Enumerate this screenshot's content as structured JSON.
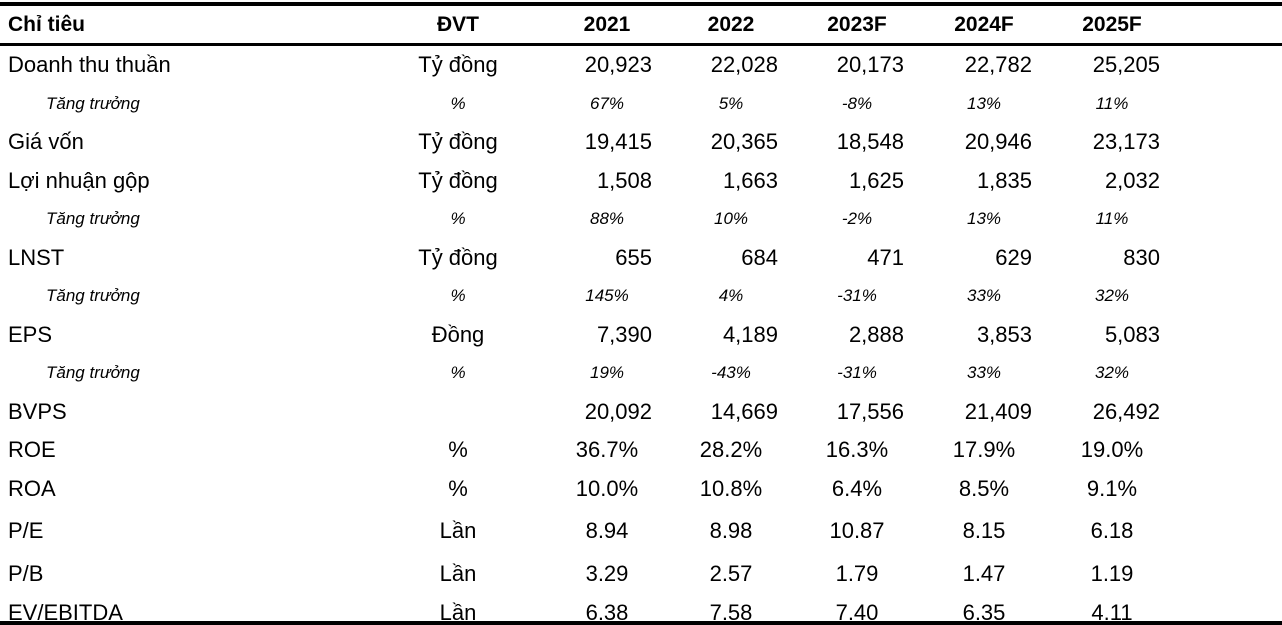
{
  "colors": {
    "background": "#ffffff",
    "text": "#000000",
    "rule": "#000000"
  },
  "table": {
    "columns": [
      {
        "label": "Chỉ tiêu"
      },
      {
        "label": "ĐVT"
      },
      {
        "label": "2021"
      },
      {
        "label": "2022"
      },
      {
        "label": "2023F"
      },
      {
        "label": "2024F"
      },
      {
        "label": "2025F"
      }
    ],
    "rows": [
      {
        "label": "Doanh thu thuần",
        "unit": "Tỷ đồng",
        "style": "num",
        "values": [
          "20,923",
          "22,028",
          "20,173",
          "22,782",
          "25,205"
        ]
      },
      {
        "label": "Tăng trưởng",
        "unit": "%",
        "style": "growth",
        "values": [
          "67%",
          "5%",
          "-8%",
          "13%",
          "11%"
        ]
      },
      {
        "label": "Giá vốn",
        "unit": "Tỷ đồng",
        "style": "num",
        "values": [
          "19,415",
          "20,365",
          "18,548",
          "20,946",
          "23,173"
        ]
      },
      {
        "label": "Lợi nhuận gộp",
        "unit": "Tỷ đồng",
        "style": "num",
        "values": [
          "1,508",
          "1,663",
          "1,625",
          "1,835",
          "2,032"
        ]
      },
      {
        "label": "Tăng trưởng",
        "unit": "%",
        "style": "growth",
        "values": [
          "88%",
          "10%",
          "-2%",
          "13%",
          "11%"
        ]
      },
      {
        "label": "LNST",
        "unit": "Tỷ đồng",
        "style": "num",
        "values": [
          "655",
          "684",
          "471",
          "629",
          "830"
        ]
      },
      {
        "label": "Tăng trưởng",
        "unit": "%",
        "style": "growth",
        "values": [
          "145%",
          "4%",
          "-31%",
          "33%",
          "32%"
        ]
      },
      {
        "label": "EPS",
        "unit": "Đồng",
        "style": "num",
        "values": [
          "7,390",
          "4,189",
          "2,888",
          "3,853",
          "5,083"
        ]
      },
      {
        "label": "Tăng trưởng",
        "unit": "%",
        "style": "growth",
        "values": [
          "19%",
          "-43%",
          "-31%",
          "33%",
          "32%"
        ]
      },
      {
        "label": "BVPS",
        "unit": "",
        "style": "num",
        "values": [
          "20,092",
          "14,669",
          "17,556",
          "21,409",
          "26,492"
        ]
      },
      {
        "label": "ROE",
        "unit": "%",
        "style": "ratio",
        "values": [
          "36.7%",
          "28.2%",
          "16.3%",
          "17.9%",
          "19.0%"
        ]
      },
      {
        "label": "ROA",
        "unit": "%",
        "style": "ratio",
        "values": [
          "10.0%",
          "10.8%",
          "6.4%",
          "8.5%",
          "9.1%"
        ]
      },
      {
        "label": "P/E",
        "unit": "Lần",
        "style": "ratio",
        "values": [
          "8.94",
          "8.98",
          "10.87",
          "8.15",
          "6.18"
        ]
      },
      {
        "label": "P/B",
        "unit": "Lần",
        "style": "ratio",
        "values": [
          "3.29",
          "2.57",
          "1.79",
          "1.47",
          "1.19"
        ]
      },
      {
        "label": "EV/EBITDA",
        "unit": "Lần",
        "style": "ratio",
        "values": [
          "6.38",
          "7.58",
          "7.40",
          "6.35",
          "4.11"
        ]
      }
    ]
  }
}
